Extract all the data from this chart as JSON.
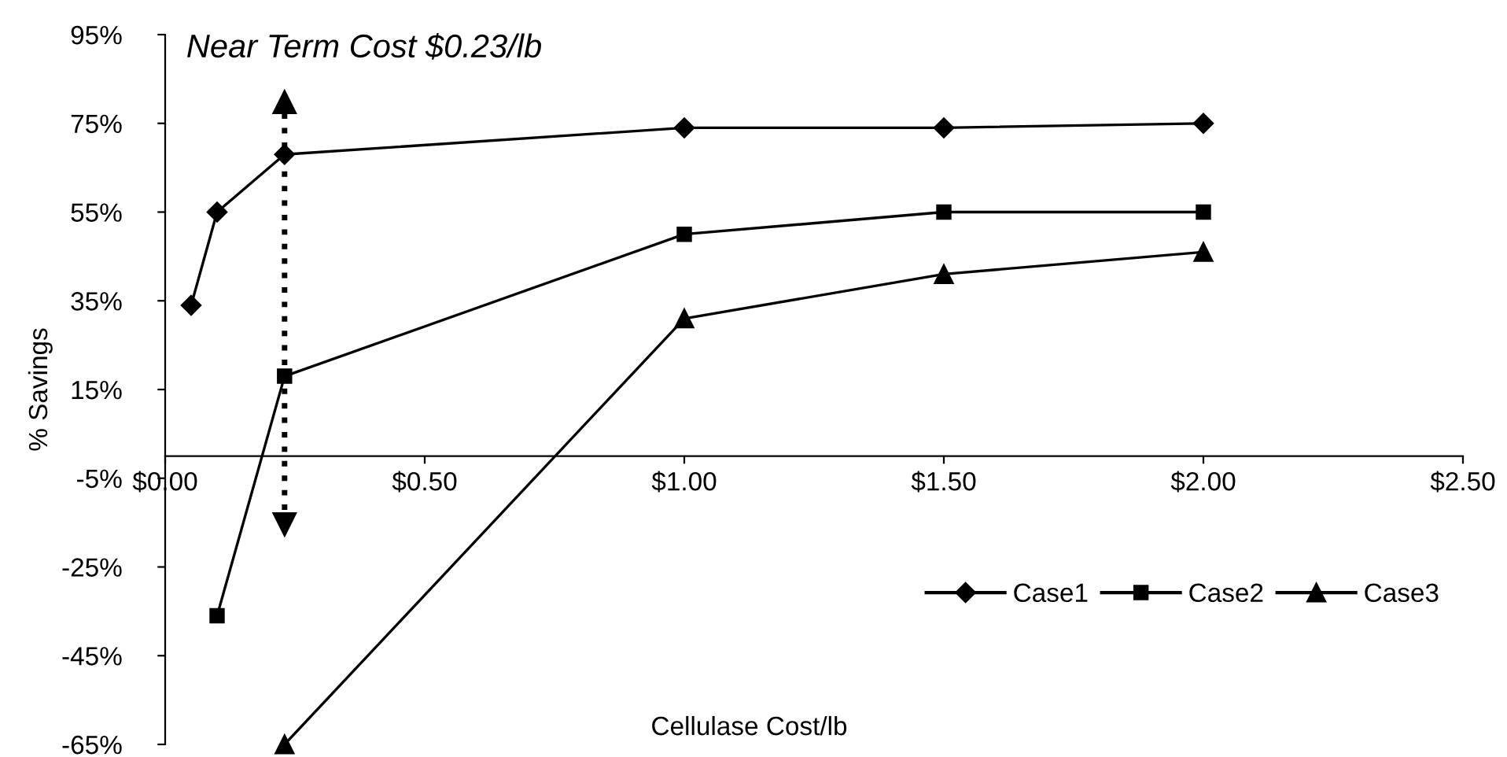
{
  "chart_data": {
    "type": "line",
    "xlabel": "Cellulase Cost/lb",
    "ylabel": "% Savings",
    "series": [
      {
        "name": "Case1",
        "color": "#000000",
        "marker": "diamond",
        "x": [
          0.05,
          0.1,
          0.23,
          1.0,
          1.5,
          2.0
        ],
        "values": [
          34,
          55,
          68,
          74,
          74,
          75
        ]
      },
      {
        "name": "Case2",
        "color": "#000000",
        "marker": "square",
        "x": [
          0.1,
          0.23,
          1.0,
          1.5,
          2.0
        ],
        "values": [
          -36,
          18,
          50,
          55,
          55
        ]
      },
      {
        "name": "Case3",
        "color": "#000000",
        "marker": "triangle",
        "x": [
          0.23,
          1.0,
          1.5,
          2.0
        ],
        "values": [
          -65,
          31,
          41,
          46
        ]
      }
    ],
    "xlim": [
      0,
      2.5
    ],
    "xticks": [
      {
        "value": 0,
        "label": "$0.00"
      },
      {
        "value": 0.5,
        "label": "$0.50"
      },
      {
        "value": 1.0,
        "label": "$1.00"
      },
      {
        "value": 1.5,
        "label": "$1.50"
      },
      {
        "value": 2.0,
        "label": "$2.00"
      },
      {
        "value": 2.5,
        "label": "$2.50"
      }
    ],
    "ylim": [
      -65,
      95
    ],
    "yticks": [
      {
        "value": -65,
        "label": "-65%"
      },
      {
        "value": -45,
        "label": "-45%"
      },
      {
        "value": -25,
        "label": "-25%"
      },
      {
        "value": -5,
        "label": "-5%"
      },
      {
        "value": 15,
        "label": "15%"
      },
      {
        "value": 35,
        "label": "35%"
      },
      {
        "value": 55,
        "label": "55%"
      },
      {
        "value": 75,
        "label": "75%"
      },
      {
        "value": 95,
        "label": "95%"
      }
    ],
    "ref_lines": [
      {
        "axis": "x",
        "value": 0.23,
        "label": "Near Term Cost $0.23/lb",
        "line_style": "dotted",
        "color": "#000000"
      }
    ],
    "grid": false,
    "legend": "bottom right",
    "line_style": "solid"
  }
}
